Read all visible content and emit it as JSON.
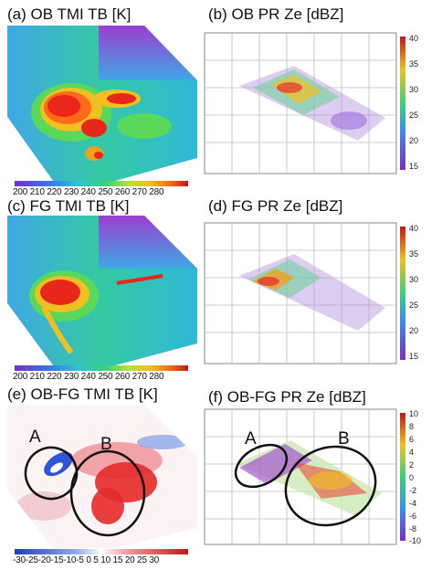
{
  "panels": {
    "a": {
      "label": "(a) OB TMI TB [K]",
      "colorbar_ticks": "200 210 220 230 240 250 260 270 280"
    },
    "b": {
      "label": "(b) OB PR Ze [dBZ]",
      "colorbar_ticks": [
        "40",
        "35",
        "30",
        "25",
        "20",
        "15"
      ]
    },
    "c": {
      "label": "(c) FG TMI TB [K]",
      "colorbar_ticks": "200 210 220 230 240 250 260 270 280"
    },
    "d": {
      "label": "(d) FG PR Ze [dBZ]",
      "colorbar_ticks": [
        "40",
        "35",
        "30",
        "25",
        "20",
        "15"
      ]
    },
    "e": {
      "label": "(e) OB-FG TMI TB [K]",
      "colorbar_ticks": "-30-25-20-15-10-5  0  5 10 15 20 25 30"
    },
    "f": {
      "label": "(f) OB-FG PR Ze  [dBZ]",
      "colorbar_ticks": [
        "10",
        "8",
        "6",
        "4",
        "2",
        "0",
        "-2",
        "-4",
        "-6",
        "-8",
        "-10"
      ]
    }
  },
  "annotations": {
    "region_a": "A",
    "region_b": "B"
  },
  "colors": {
    "cold": "#7a2fc4",
    "mid": "#3ad07a",
    "warm": "#e52a1a",
    "neg": "#2d55d8",
    "pos": "#e52a2a"
  }
}
